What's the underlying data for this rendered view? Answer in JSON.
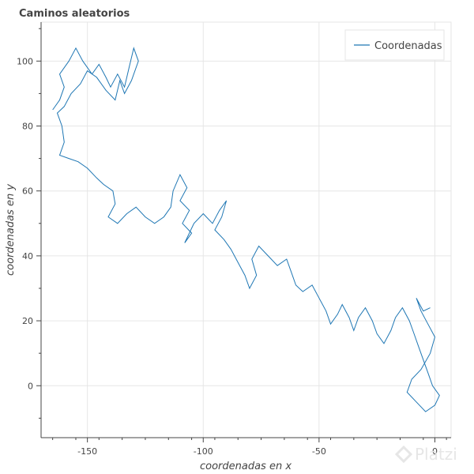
{
  "chart_data": {
    "type": "line",
    "title": "Caminos aleatorios",
    "xlabel": "coordenadas en x",
    "ylabel": "coordenadas en y",
    "xlim": [
      -170,
      7
    ],
    "ylim": [
      -16,
      112
    ],
    "x_ticks": [
      -150,
      -100,
      -50,
      0
    ],
    "y_ticks": [
      0,
      20,
      40,
      60,
      80,
      100
    ],
    "grid": true,
    "legend_position": "top-right",
    "line_color": "#1f77b4",
    "series": [
      {
        "name": "Coordenadas",
        "path": [
          [
            -165,
            85
          ],
          [
            -162,
            88
          ],
          [
            -160,
            92
          ],
          [
            -162,
            96
          ],
          [
            -158,
            100
          ],
          [
            -155,
            104
          ],
          [
            -152,
            100
          ],
          [
            -148,
            96
          ],
          [
            -145,
            99
          ],
          [
            -142,
            95
          ],
          [
            -140,
            92
          ],
          [
            -137,
            96
          ],
          [
            -134,
            92
          ],
          [
            -132,
            98
          ],
          [
            -130,
            104
          ],
          [
            -128,
            100
          ],
          [
            -131,
            94
          ],
          [
            -134,
            90
          ],
          [
            -136,
            94
          ],
          [
            -138,
            88
          ],
          [
            -142,
            91
          ],
          [
            -146,
            95
          ],
          [
            -150,
            97
          ],
          [
            -153,
            93
          ],
          [
            -157,
            90
          ],
          [
            -160,
            86
          ],
          [
            -163,
            84
          ],
          [
            -161,
            80
          ],
          [
            -160,
            75
          ],
          [
            -162,
            71
          ],
          [
            -158,
            70
          ],
          [
            -154,
            69
          ],
          [
            -150,
            67
          ],
          [
            -146,
            64
          ],
          [
            -143,
            62
          ],
          [
            -139,
            60
          ],
          [
            -138,
            56
          ],
          [
            -141,
            52
          ],
          [
            -137,
            50
          ],
          [
            -133,
            53
          ],
          [
            -129,
            55
          ],
          [
            -125,
            52
          ],
          [
            -121,
            50
          ],
          [
            -117,
            52
          ],
          [
            -114,
            55
          ],
          [
            -113,
            60
          ],
          [
            -110,
            65
          ],
          [
            -107,
            61
          ],
          [
            -110,
            57
          ],
          [
            -106,
            54
          ],
          [
            -109,
            50
          ],
          [
            -105,
            47
          ],
          [
            -108,
            44
          ],
          [
            -104,
            50
          ],
          [
            -100,
            53
          ],
          [
            -96,
            50
          ],
          [
            -93,
            54
          ],
          [
            -90,
            57
          ],
          [
            -92,
            52
          ],
          [
            -95,
            48
          ],
          [
            -91,
            45
          ],
          [
            -88,
            42
          ],
          [
            -85,
            38
          ],
          [
            -82,
            34
          ],
          [
            -80,
            30
          ],
          [
            -77,
            34
          ],
          [
            -79,
            39
          ],
          [
            -76,
            43
          ],
          [
            -72,
            40
          ],
          [
            -68,
            37
          ],
          [
            -64,
            39
          ],
          [
            -62,
            35
          ],
          [
            -60,
            31
          ],
          [
            -57,
            29
          ],
          [
            -53,
            31
          ],
          [
            -50,
            27
          ],
          [
            -47,
            23
          ],
          [
            -45,
            19
          ],
          [
            -42,
            22
          ],
          [
            -40,
            25
          ],
          [
            -37,
            21
          ],
          [
            -35,
            17
          ],
          [
            -33,
            21
          ],
          [
            -30,
            24
          ],
          [
            -27,
            20
          ],
          [
            -25,
            16
          ],
          [
            -22,
            13
          ],
          [
            -19,
            17
          ],
          [
            -17,
            21
          ],
          [
            -14,
            24
          ],
          [
            -11,
            20
          ],
          [
            -9,
            16
          ],
          [
            -7,
            12
          ],
          [
            -5,
            8
          ],
          [
            -3,
            4
          ],
          [
            -1,
            0
          ],
          [
            2,
            -3
          ],
          [
            0,
            -6
          ],
          [
            -4,
            -8
          ],
          [
            -8,
            -5
          ],
          [
            -12,
            -2
          ],
          [
            -10,
            2
          ],
          [
            -6,
            5
          ],
          [
            -2,
            10
          ],
          [
            0,
            15
          ],
          [
            -3,
            19
          ],
          [
            -6,
            23
          ],
          [
            -8,
            27
          ],
          [
            -5,
            23
          ],
          [
            -2,
            24
          ]
        ]
      }
    ]
  },
  "watermark": "Platzi"
}
